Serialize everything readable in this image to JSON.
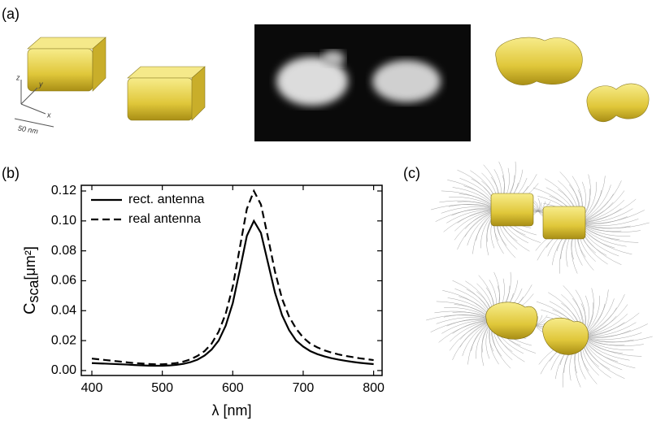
{
  "panels": {
    "a": "(a)",
    "b": "(b)",
    "c": "(c)"
  },
  "axes_icon": {
    "x": "x",
    "y": "y",
    "z": "z",
    "scale": "50 nm"
  },
  "chart_data": {
    "type": "line",
    "x_label": "λ [nm]",
    "y_label": {
      "symbol": "C",
      "subscript": "sca",
      "unit": "[μm²]"
    },
    "x": [
      400,
      410,
      420,
      430,
      440,
      450,
      460,
      470,
      480,
      490,
      500,
      510,
      520,
      530,
      540,
      550,
      560,
      570,
      580,
      590,
      600,
      610,
      620,
      630,
      640,
      650,
      660,
      670,
      680,
      690,
      700,
      710,
      720,
      730,
      740,
      750,
      760,
      770,
      780,
      790,
      800
    ],
    "series": [
      {
        "name": "rect. antenna",
        "color": "#000000",
        "line_style": "solid",
        "values": [
          0.005,
          0.0048,
          0.0046,
          0.0044,
          0.0042,
          0.004,
          0.0037,
          0.0035,
          0.0033,
          0.0032,
          0.0032,
          0.0034,
          0.0038,
          0.0045,
          0.0056,
          0.0073,
          0.01,
          0.014,
          0.02,
          0.03,
          0.045,
          0.067,
          0.09,
          0.1,
          0.092,
          0.072,
          0.052,
          0.037,
          0.027,
          0.02,
          0.016,
          0.013,
          0.011,
          0.0095,
          0.0083,
          0.0073,
          0.0065,
          0.0058,
          0.0052,
          0.0047,
          0.0043
        ]
      },
      {
        "name": "real antenna",
        "color": "#000000",
        "line_style": "dashed",
        "values": [
          0.008,
          0.0075,
          0.007,
          0.0065,
          0.006,
          0.0055,
          0.005,
          0.0047,
          0.0044,
          0.0042,
          0.0042,
          0.0045,
          0.005,
          0.006,
          0.0075,
          0.0098,
          0.013,
          0.018,
          0.026,
          0.038,
          0.056,
          0.082,
          0.108,
          0.12,
          0.111,
          0.089,
          0.066,
          0.048,
          0.036,
          0.028,
          0.022,
          0.018,
          0.0155,
          0.0135,
          0.012,
          0.0108,
          0.0098,
          0.009,
          0.0082,
          0.0076,
          0.007
        ]
      }
    ],
    "xlim": [
      385,
      812
    ],
    "ylim": [
      -0.0033,
      0.1238
    ],
    "xticks": [
      400,
      500,
      600,
      700,
      800
    ],
    "yticks": [
      {
        "value": 0,
        "label": "0.00"
      },
      0.02,
      0.04,
      0.06,
      0.08,
      {
        "value": 0.1,
        "label": "0.10"
      },
      0.12
    ],
    "legend": "upper left"
  }
}
